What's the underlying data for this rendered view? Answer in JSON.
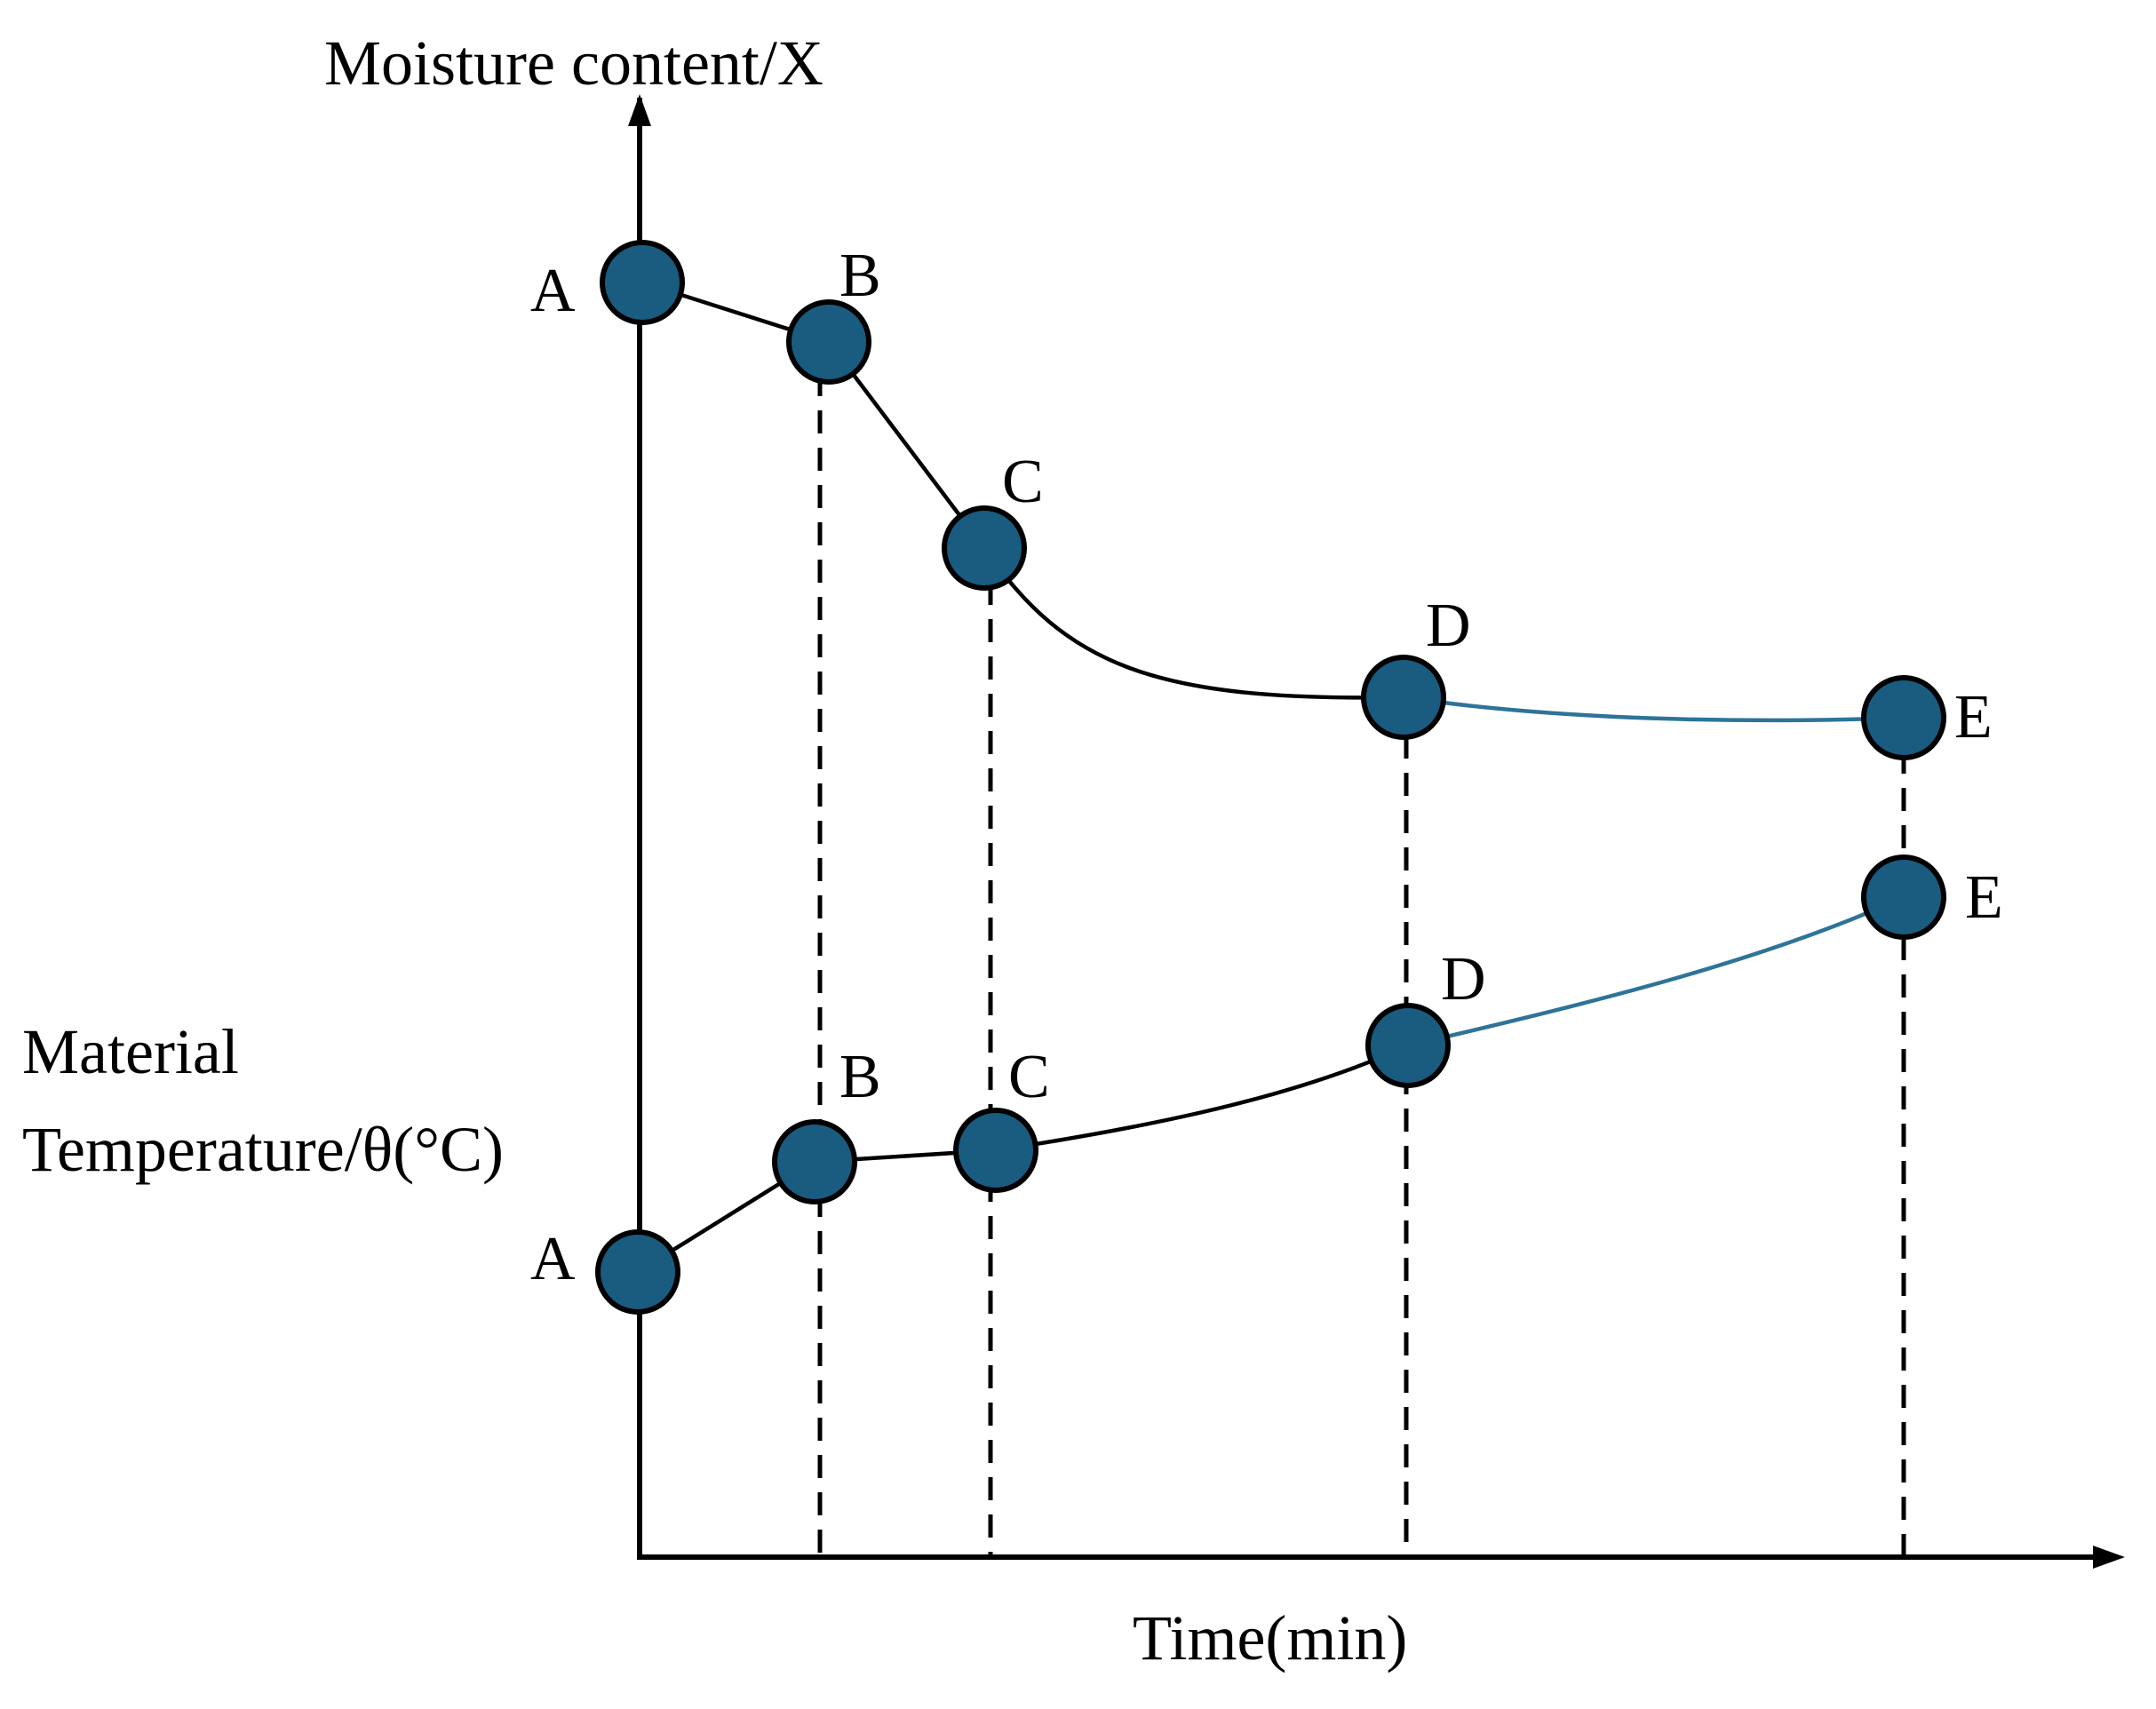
{
  "diagram": {
    "y_axis_label": "Moisture content/X",
    "secondary_label_line1": "Material",
    "secondary_label_line2": "Temperature/θ(°C)",
    "x_axis_label": "Time(min)",
    "marker_fill": "#1a5b80",
    "line_color": "#000000",
    "late_segment_color": "#2e7399",
    "moisture_curve": {
      "points": [
        "A",
        "B",
        "C",
        "D",
        "E"
      ],
      "segments": [
        {
          "from": "A",
          "to": "B",
          "style": "straight"
        },
        {
          "from": "B",
          "to": "C",
          "style": "straight"
        },
        {
          "from": "C",
          "to": "D",
          "style": "curve"
        },
        {
          "from": "D",
          "to": "E",
          "style": "curve-blue"
        }
      ]
    },
    "temperature_curve": {
      "points": [
        "A",
        "B",
        "C",
        "D",
        "E"
      ],
      "segments": [
        {
          "from": "A",
          "to": "B",
          "style": "straight"
        },
        {
          "from": "B",
          "to": "C",
          "style": "straight"
        },
        {
          "from": "C",
          "to": "D",
          "style": "curve"
        },
        {
          "from": "D",
          "to": "E",
          "style": "curve-blue"
        }
      ]
    }
  }
}
